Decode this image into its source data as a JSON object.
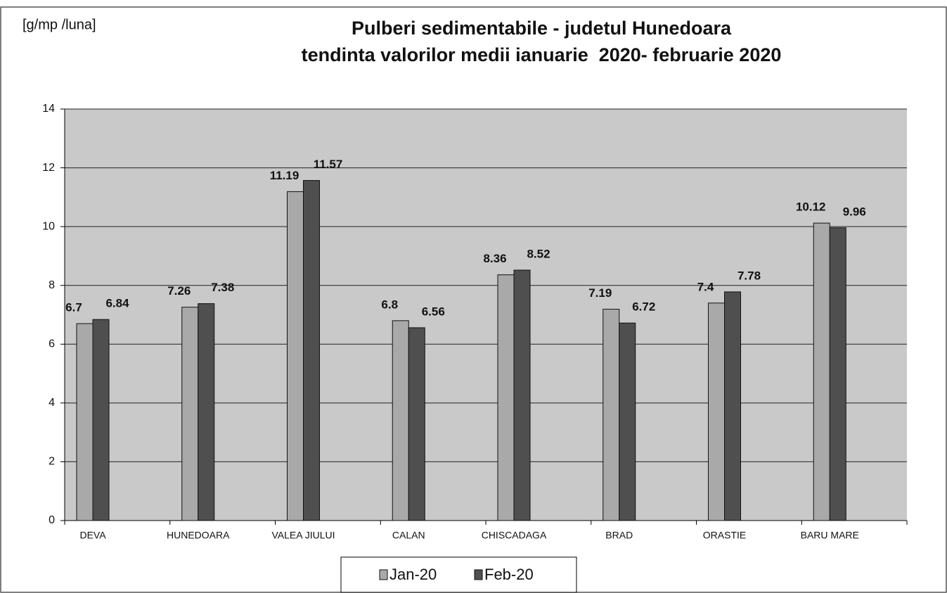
{
  "chart_data": {
    "type": "bar",
    "title": "Pulberi sedimentabile - judetul Hunedoara",
    "subtitle": "tendinta valorilor medii ianuarie  2020- februarie 2020",
    "y_label": "[g/mp /luna]",
    "categories": [
      "DEVA",
      "HUNEDOARA",
      "VALEA JIULUI",
      "CALAN",
      "CHISCADAGA",
      "BRAD",
      "ORASTIE",
      "BARU MARE"
    ],
    "series": [
      {
        "name": "Jan-20",
        "color": "#a9a9a9",
        "values": [
          6.7,
          7.26,
          11.19,
          6.8,
          8.36,
          7.19,
          7.4,
          10.12
        ]
      },
      {
        "name": "Feb-20",
        "color": "#4f4f4f",
        "values": [
          6.84,
          7.38,
          11.57,
          6.56,
          8.52,
          6.72,
          7.78,
          9.96
        ]
      }
    ],
    "ylim": [
      0,
      14
    ],
    "yticks": [
      0,
      2,
      4,
      6,
      8,
      10,
      12,
      14
    ],
    "grid": true,
    "legend": "bottom"
  }
}
